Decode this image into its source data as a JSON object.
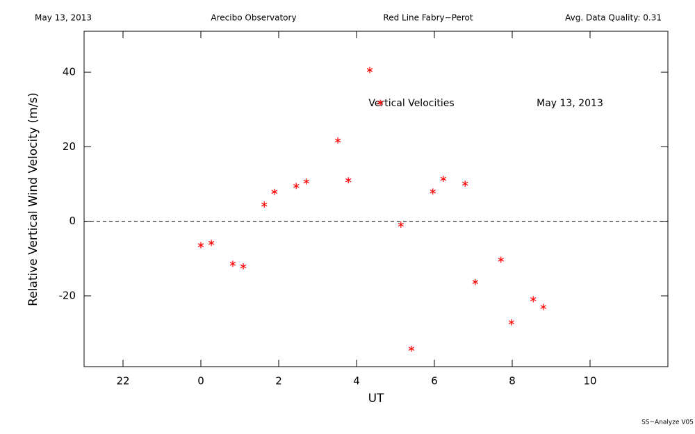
{
  "chart_data": {
    "type": "scatter",
    "header": [
      "May 13, 2013",
      "Arecibo Observatory",
      "Red Line Fabry−Perot",
      "Avg. Data Quality: 0.31"
    ],
    "annotations": [
      "Vertical Velocities",
      "May 13, 2013"
    ],
    "xlabel": "UT",
    "ylabel": "Relative Vertical Wind Velocity (m/s)",
    "footer": "SS−Analyze V05",
    "x": [
      0,
      0.27,
      0.82,
      1.09,
      1.63,
      1.89,
      2.45,
      2.71,
      3.52,
      3.79,
      4.34,
      4.61,
      5.14,
      5.41,
      5.96,
      6.23,
      6.79,
      7.05,
      7.71,
      7.98,
      8.54,
      8.8
    ],
    "series": [
      {
        "color": "#ff0000",
        "values": [
          -6.4,
          -5.8,
          -11.4,
          -12.1,
          4.5,
          7.9,
          9.5,
          10.7,
          21.7,
          11.0,
          40.6,
          31.8,
          -0.9,
          -34.2,
          8.0,
          11.4,
          10.1,
          -16.3,
          -10.3,
          -27.1,
          -20.9,
          -23.0
        ]
      }
    ],
    "xlim": [
      -3,
      12
    ],
    "xticks": [
      {
        "value": -2,
        "label": "22"
      },
      0,
      2,
      4,
      6,
      8,
      10
    ],
    "ylim": [
      -39,
      51
    ],
    "yticks": [
      -20,
      0,
      20,
      40
    ],
    "reference_line": 0
  }
}
